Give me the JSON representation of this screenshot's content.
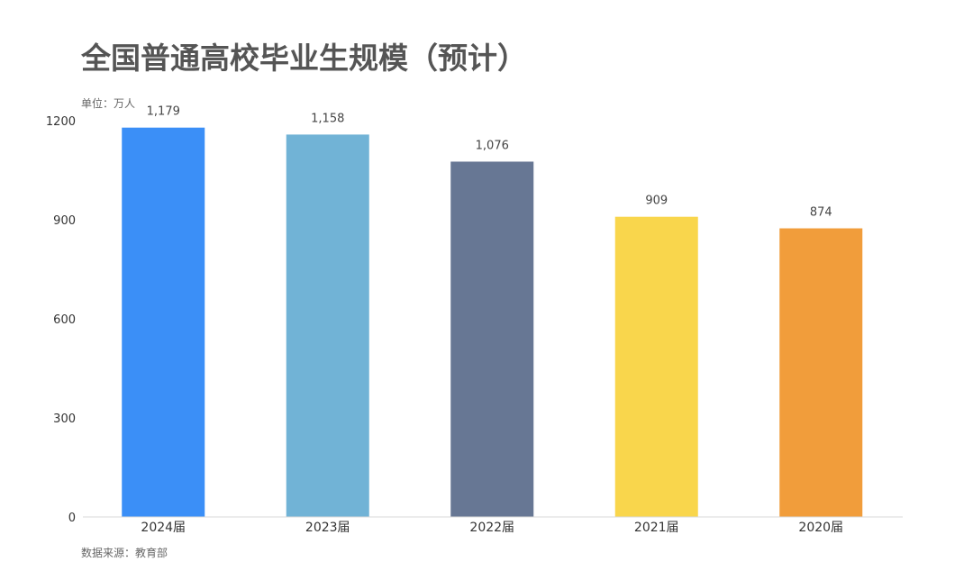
{
  "chart_data": {
    "type": "bar",
    "title": "全国普通高校毕业生规模（预计）",
    "unit_label": "单位：万人",
    "source": "数据来源：教育部",
    "categories": [
      "2024届",
      "2023届",
      "2022届",
      "2021届",
      "2020届"
    ],
    "values": [
      1179,
      1158,
      1076,
      909,
      874
    ],
    "value_labels": [
      "1,179",
      "1,158",
      "1,076",
      "909",
      "874"
    ],
    "colors": [
      "#3b8ff7",
      "#71b3d6",
      "#677794",
      "#f9d64c",
      "#f19d3b"
    ],
    "ylim": [
      0,
      1200
    ],
    "yticks": [
      0,
      300,
      600,
      900,
      1200
    ],
    "grid": false,
    "legend": "none"
  }
}
